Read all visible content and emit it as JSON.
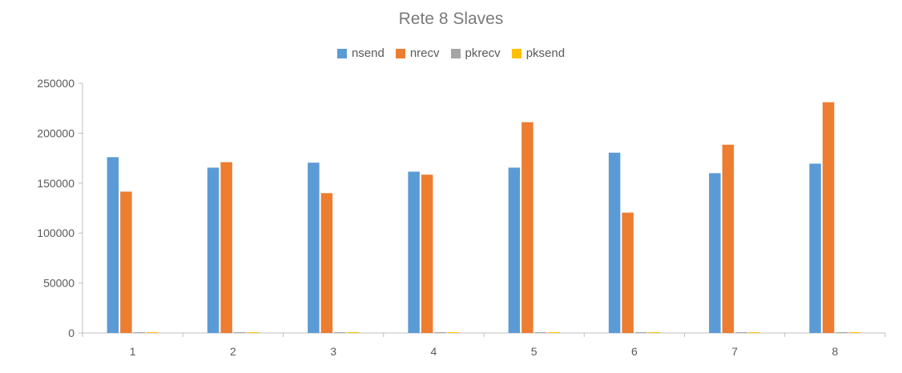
{
  "chart_data": {
    "type": "bar",
    "title": "Rete 8 Slaves",
    "xlabel": "",
    "ylabel": "",
    "categories": [
      "1",
      "2",
      "3",
      "4",
      "5",
      "6",
      "7",
      "8"
    ],
    "series": [
      {
        "name": "nsend",
        "color": "#5b9bd5",
        "values": [
          176000,
          165500,
          170500,
          161500,
          165500,
          180500,
          160000,
          169500
        ]
      },
      {
        "name": "nrecv",
        "color": "#ed7d31",
        "values": [
          141500,
          171000,
          140000,
          158500,
          211000,
          120500,
          188500,
          231000
        ]
      },
      {
        "name": "pkrecv",
        "color": "#a5a5a5",
        "values": [
          300,
          300,
          300,
          300,
          300,
          300,
          300,
          300
        ]
      },
      {
        "name": "pksend",
        "color": "#ffc000",
        "values": [
          300,
          300,
          300,
          300,
          300,
          300,
          300,
          300
        ]
      }
    ],
    "yticks": [
      "0",
      "50000",
      "100000",
      "150000",
      "200000",
      "250000"
    ],
    "ylim": [
      0,
      250000
    ],
    "grid": false,
    "legend_position": "top"
  }
}
